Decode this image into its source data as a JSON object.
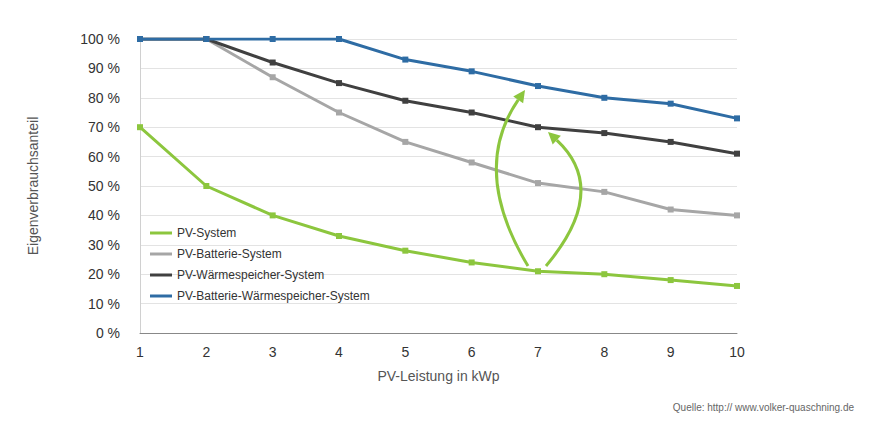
{
  "chart_data": {
    "type": "line",
    "x_label": "PV-Leistung in kWp",
    "y_label": "Eigenverbrauchsanteil",
    "source": "Quelle: http:// www.volker-quaschning.de",
    "x": [
      1,
      2,
      3,
      4,
      5,
      6,
      7,
      8,
      9,
      10
    ],
    "series": [
      {
        "name": "PV-System",
        "color": "#8cc63e",
        "values": [
          70,
          50,
          40,
          33,
          28,
          24,
          21,
          20,
          18,
          16
        ]
      },
      {
        "name": "PV-Batterie-System",
        "color": "#a6a6a6",
        "values": [
          100,
          100,
          87,
          75,
          65,
          58,
          51,
          48,
          42,
          40
        ]
      },
      {
        "name": "PV-Wärmespeicher-System",
        "color": "#404040",
        "values": [
          100,
          100,
          92,
          85,
          79,
          75,
          70,
          68,
          65,
          61
        ]
      },
      {
        "name": "PV-Batterie-Wärmespeicher-System",
        "color": "#2e6ca4",
        "values": [
          100,
          100,
          100,
          100,
          93,
          89,
          84,
          80,
          78,
          73
        ]
      }
    ],
    "xlim": [
      1,
      10
    ],
    "xticks": [
      1,
      2,
      3,
      4,
      5,
      6,
      7,
      8,
      9,
      10
    ],
    "ylim": [
      0,
      100
    ],
    "yticks": [
      {
        "value": 0,
        "label": "0 %"
      },
      {
        "value": 10,
        "label": "10 %"
      },
      {
        "value": 20,
        "label": "20 %"
      },
      {
        "value": 30,
        "label": "30 %"
      },
      {
        "value": 40,
        "label": "40 %"
      },
      {
        "value": 50,
        "label": "50 %"
      },
      {
        "value": 60,
        "label": "60 %"
      },
      {
        "value": 70,
        "label": "70 %"
      },
      {
        "value": 80,
        "label": "80 %"
      },
      {
        "value": 90,
        "label": "90 %"
      },
      {
        "value": 100,
        "label": "100 %"
      }
    ],
    "grid": true,
    "legend": "lower left",
    "marker": "square"
  }
}
